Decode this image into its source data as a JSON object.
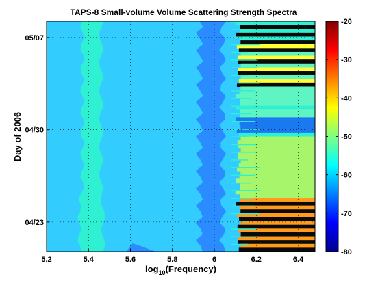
{
  "chart_data": {
    "type": "heatmap",
    "title": "TAPS-8 Small-volume Volume Scattering Strength Spectra",
    "xlabel_main": "log",
    "xlabel_sub": "10",
    "xlabel_rest": "(Frequency)",
    "ylabel": "Day of 2006",
    "xlim": [
      5.2,
      6.48
    ],
    "x_ticks": [
      "5.2",
      "5.4",
      "5.6",
      "5.8",
      "6",
      "6.2",
      "6.4"
    ],
    "x_tick_values": [
      5.2,
      5.4,
      5.6,
      5.8,
      6.0,
      6.2,
      6.4
    ],
    "y_ticks": [
      "04/23",
      "04/30",
      "05/07"
    ],
    "ylim_fraction": [
      0,
      1
    ],
    "y_tick_fractions": [
      0.128,
      0.529,
      0.929
    ],
    "colorbar": {
      "min": -80,
      "max": -20,
      "ticks": [
        "-20",
        "-30",
        "-40",
        "-50",
        "-60",
        "-70",
        "-80"
      ],
      "tick_values": [
        -20,
        -30,
        -40,
        -50,
        -60,
        -70,
        -80
      ]
    },
    "grid": true,
    "background_level": -60,
    "colormap": [
      "#00008f",
      "#0000ff",
      "#0080ff",
      "#00ffff",
      "#80ff80",
      "#ffff00",
      "#ff8000",
      "#ff0000",
      "#800000"
    ]
  }
}
